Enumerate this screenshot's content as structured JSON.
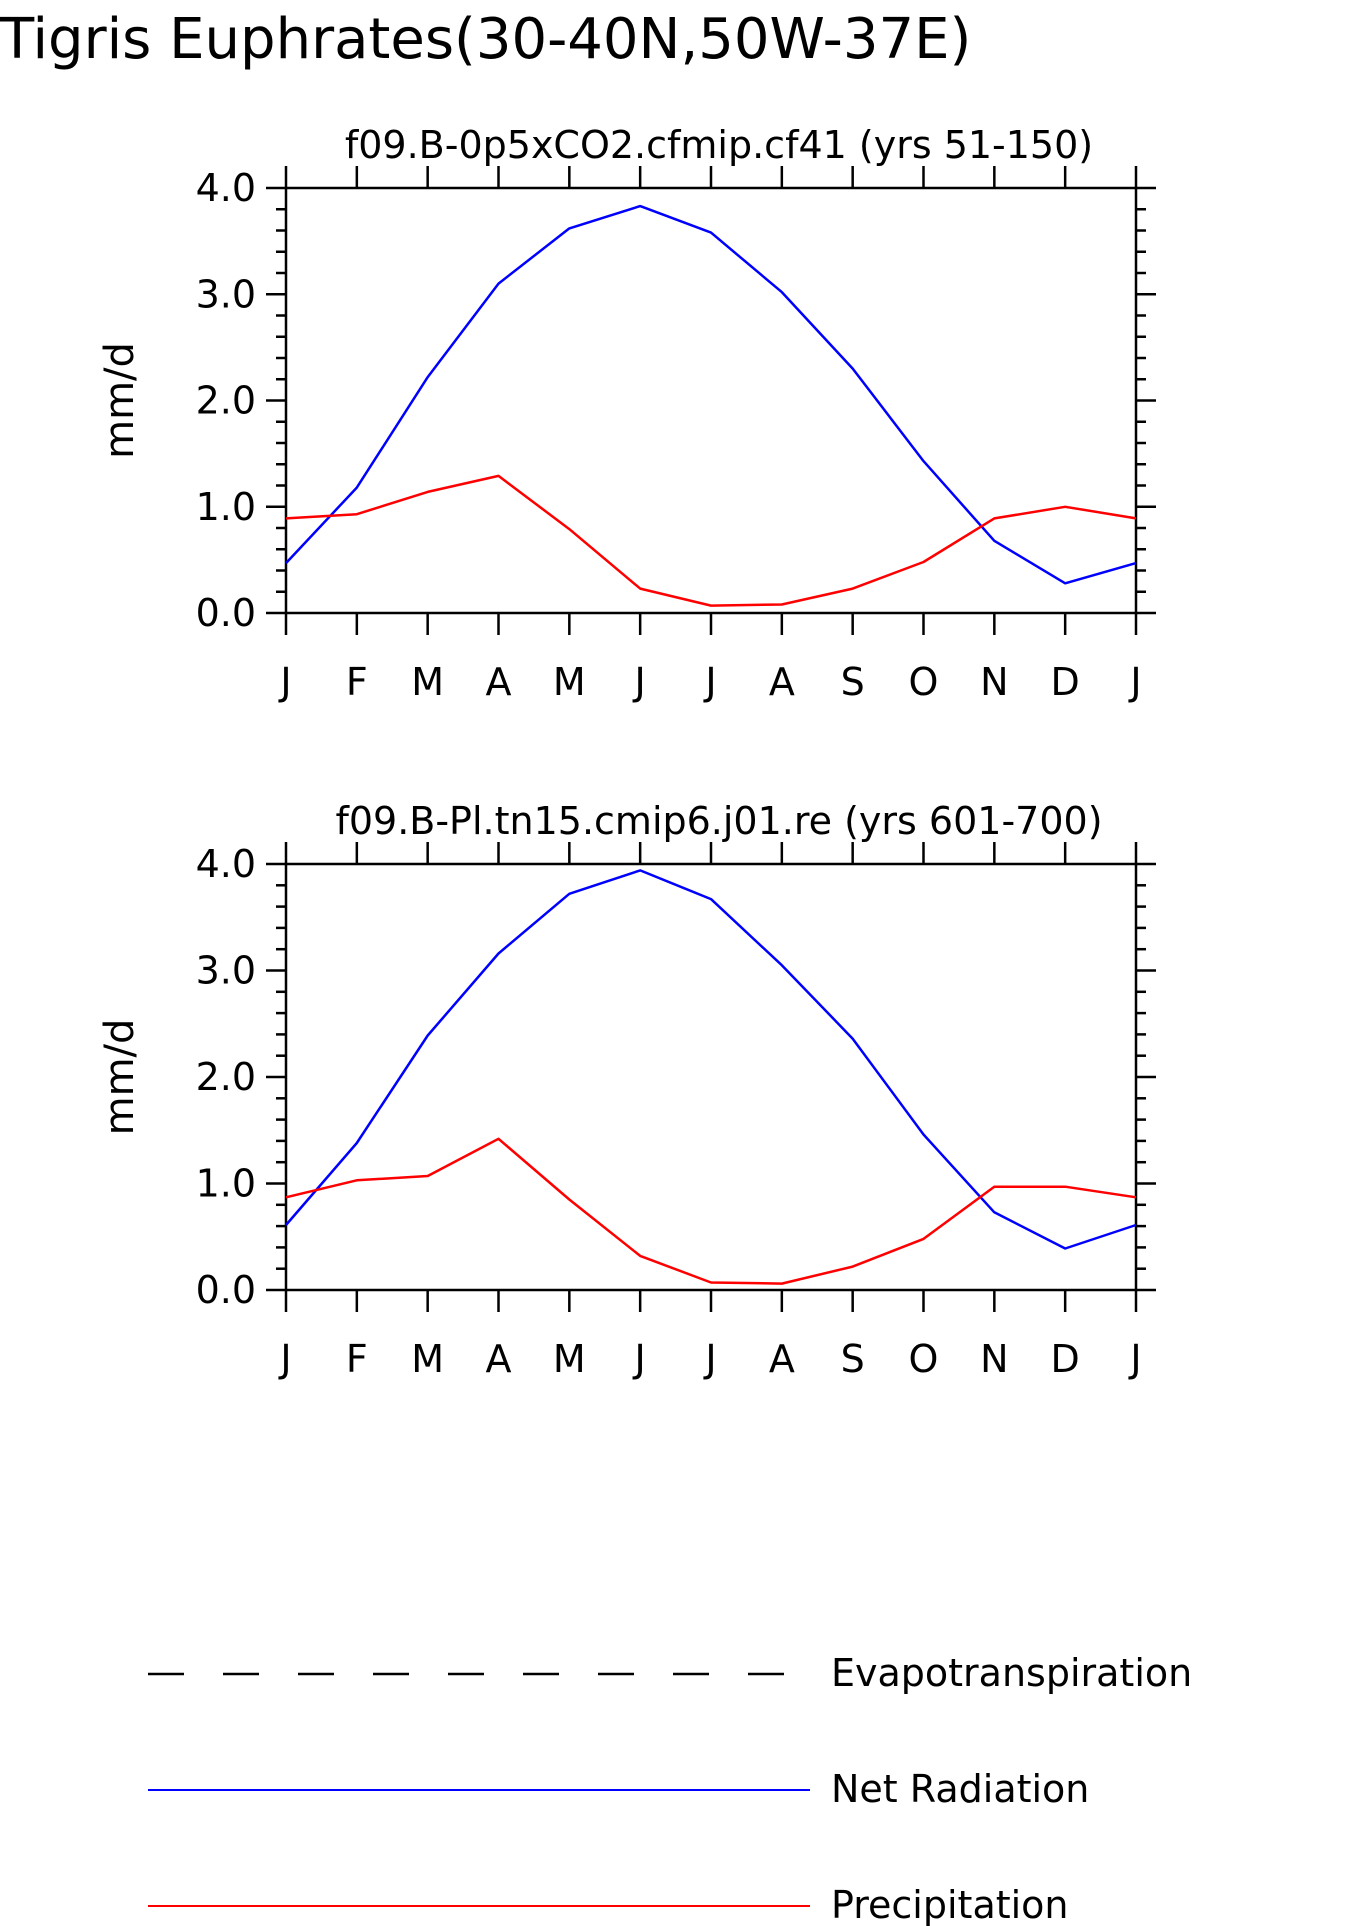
{
  "figure": {
    "title": "Tigris Euphrates(30-40N,50W-37E)"
  },
  "colors": {
    "net_radiation": "#0000ff",
    "precipitation": "#ff0000",
    "evapotranspiration": "#000000",
    "axis": "#000000"
  },
  "legend": {
    "placement": "bottom",
    "items": [
      {
        "label": "Evapotranspiration",
        "style": "dashed",
        "color": "#000000"
      },
      {
        "label": "Net Radiation",
        "style": "solid",
        "color": "#0000ff"
      },
      {
        "label": "Precipitation",
        "style": "solid",
        "color": "#ff0000"
      }
    ]
  },
  "chart_data": [
    {
      "type": "line",
      "title": "f09.B-0p5xCO2.cfmip.cf41 (yrs 51-150)",
      "xlabel": "",
      "ylabel": "mm/d",
      "categories": [
        "J",
        "F",
        "M",
        "A",
        "M",
        "J",
        "J",
        "A",
        "S",
        "O",
        "N",
        "D",
        "J"
      ],
      "yticks": [
        "0.0",
        "1.0",
        "2.0",
        "3.0",
        "4.0"
      ],
      "ylim": [
        0,
        4
      ],
      "grid": false,
      "series": [
        {
          "name": "Net Radiation",
          "color": "#0000ff",
          "values": [
            0.47,
            1.18,
            2.22,
            3.1,
            3.62,
            3.83,
            3.58,
            3.02,
            2.3,
            1.43,
            0.68,
            0.28,
            0.47
          ]
        },
        {
          "name": "Precipitation",
          "color": "#ff0000",
          "values": [
            0.89,
            0.93,
            1.14,
            1.29,
            0.79,
            0.23,
            0.07,
            0.08,
            0.23,
            0.48,
            0.89,
            1.0,
            0.89
          ]
        }
      ]
    },
    {
      "type": "line",
      "title": "f09.B-Pl.tn15.cmip6.j01.re (yrs 601-700)",
      "xlabel": "",
      "ylabel": "mm/d",
      "categories": [
        "J",
        "F",
        "M",
        "A",
        "M",
        "J",
        "J",
        "A",
        "S",
        "O",
        "N",
        "D",
        "J"
      ],
      "yticks": [
        "0.0",
        "1.0",
        "2.0",
        "3.0",
        "4.0"
      ],
      "ylim": [
        0,
        4
      ],
      "grid": false,
      "series": [
        {
          "name": "Net Radiation",
          "color": "#0000ff",
          "values": [
            0.61,
            1.38,
            2.39,
            3.16,
            3.72,
            3.94,
            3.67,
            3.05,
            2.36,
            1.46,
            0.73,
            0.39,
            0.61
          ]
        },
        {
          "name": "Precipitation",
          "color": "#ff0000",
          "values": [
            0.87,
            1.03,
            1.07,
            1.42,
            0.85,
            0.32,
            0.07,
            0.06,
            0.22,
            0.48,
            0.97,
            0.97,
            0.87
          ]
        }
      ]
    }
  ]
}
